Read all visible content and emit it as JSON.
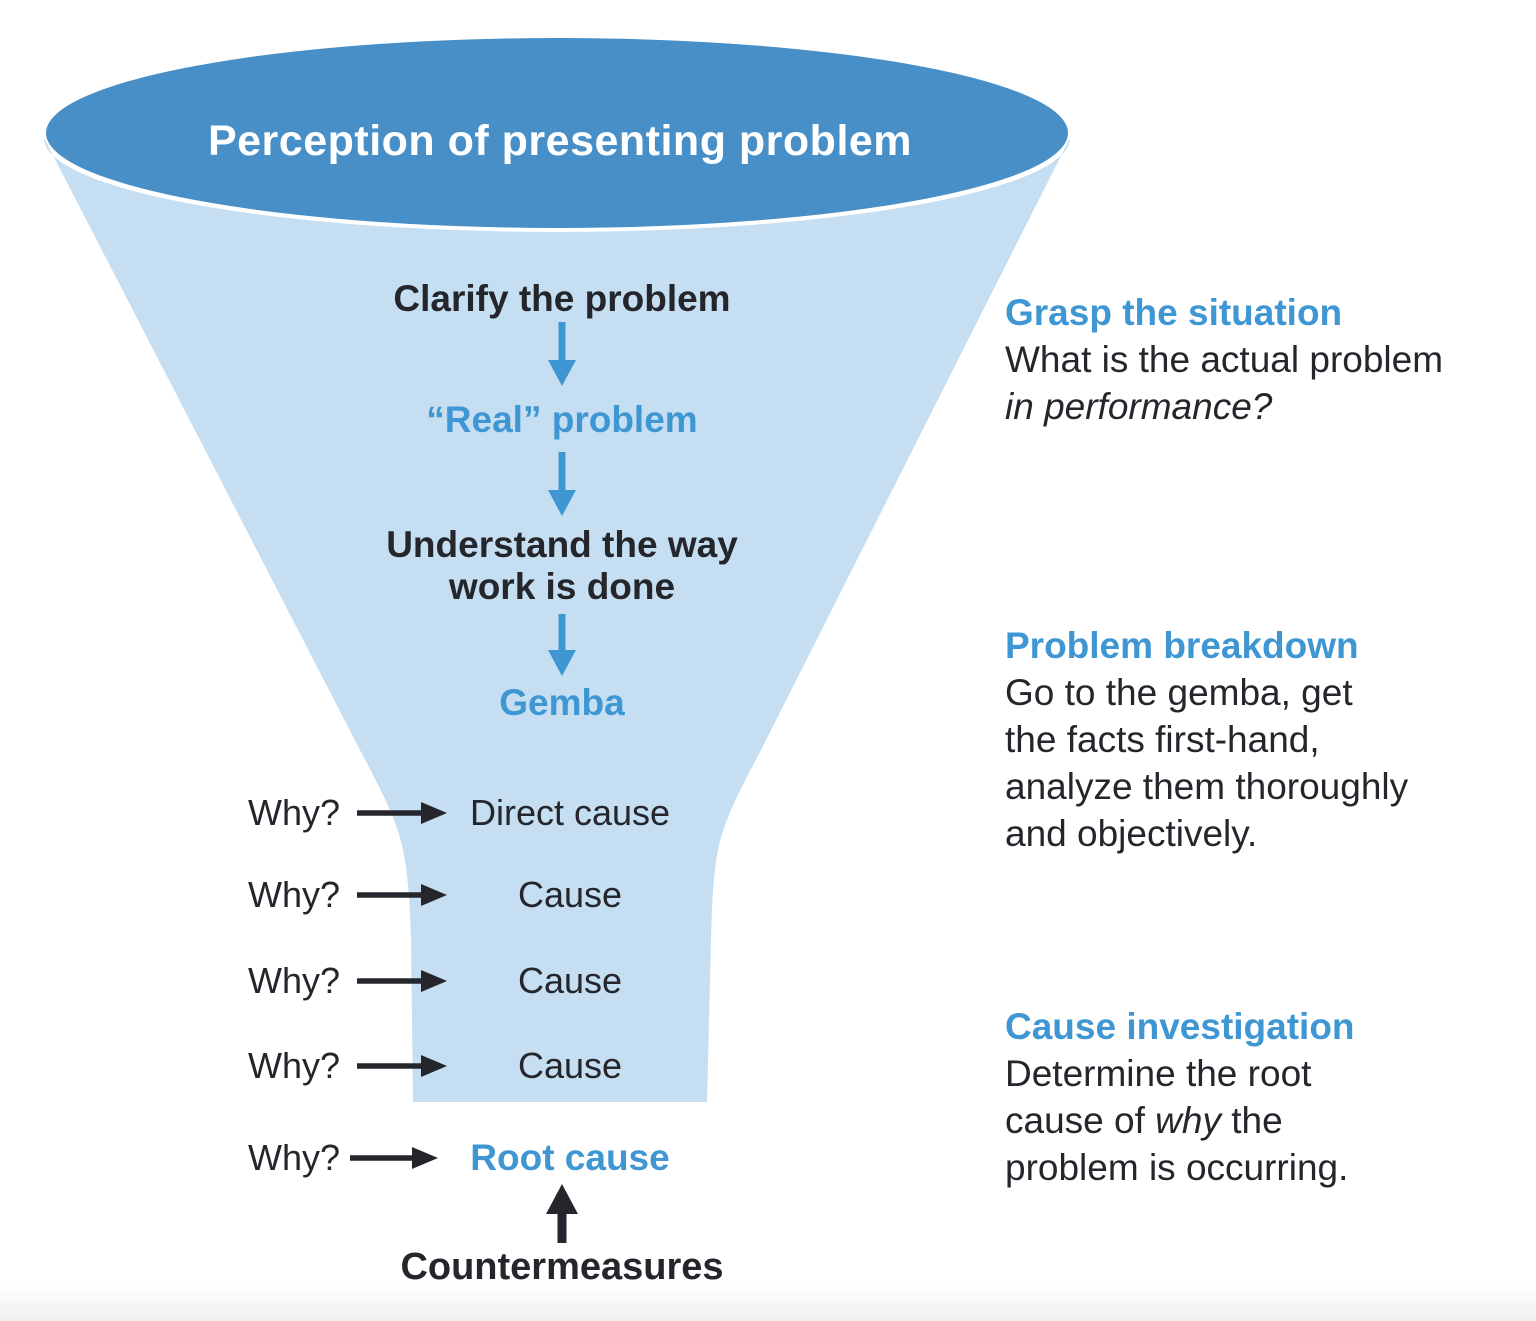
{
  "colors": {
    "funnel_body_light_blue": "#c5def1",
    "funnel_mouth_dark_blue": "#478fc6",
    "accent_blue": "#3e96d3",
    "text_dark": "#24262c",
    "title_white": "#ffffff"
  },
  "funnel": {
    "top_label": "Perception of presenting problem",
    "steps": [
      {
        "label": "Clarify the problem"
      },
      {
        "label": "“Real” problem"
      },
      {
        "label": "Understand the way\nwork is done"
      },
      {
        "label": "Gemba"
      }
    ],
    "why_rows": [
      {
        "question": "Why?",
        "label": "Direct cause"
      },
      {
        "question": "Why?",
        "label": "Cause"
      },
      {
        "question": "Why?",
        "label": "Cause"
      },
      {
        "question": "Why?",
        "label": "Cause"
      },
      {
        "question": "Why?",
        "label": "Root cause"
      }
    ],
    "countermeasures_label": "Countermeasures"
  },
  "annotations": [
    {
      "title": "Grasp the situation",
      "lines": [
        [
          {
            "t": "What is the actual problem"
          }
        ],
        [
          {
            "t": "in performance?",
            "i": true
          }
        ]
      ]
    },
    {
      "title": "Problem breakdown",
      "lines": [
        [
          {
            "t": "Go to the gemba, get"
          }
        ],
        [
          {
            "t": "the facts first-hand,"
          }
        ],
        [
          {
            "t": "analyze them thoroughly"
          }
        ],
        [
          {
            "t": "and objectively."
          }
        ]
      ]
    },
    {
      "title": "Cause investigation",
      "lines": [
        [
          {
            "t": "Determine the root"
          }
        ],
        [
          {
            "t": "cause of "
          },
          {
            "t": "why",
            "i": true
          },
          {
            "t": " the"
          }
        ],
        [
          {
            "t": "problem is occurring."
          }
        ]
      ]
    }
  ]
}
